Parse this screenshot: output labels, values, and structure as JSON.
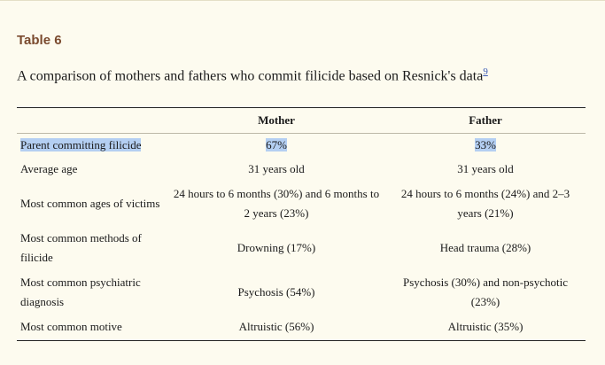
{
  "table_label": "Table 6",
  "caption": {
    "text": "A comparison of mothers and fathers who commit filicide based on Resnick's data",
    "ref": "9"
  },
  "table": {
    "headers": [
      "",
      "Mother",
      "Father"
    ],
    "rows": [
      {
        "label": "Parent committing filicide",
        "mother": "67%",
        "father": "33%"
      },
      {
        "label": "Average age",
        "mother": "31 years old",
        "father": "31 years old"
      },
      {
        "label": "Most common ages of victims",
        "mother": "24 hours to 6 months (30%) and 6 months to 2 years (23%)",
        "father": "24 hours to 6 months (24%) and 2–3 years (21%)"
      },
      {
        "label": "Most common methods of filicide",
        "mother": "Drowning (17%)",
        "father": "Head trauma (28%)"
      },
      {
        "label": "Most common psychiatric diagnosis",
        "mother": "Psychosis (54%)",
        "father": "Psychosis (30%) and non-psychotic (23%)"
      },
      {
        "label": "Most common motive",
        "mother": "Altruistic (56%)",
        "father": "Altruistic (35%)"
      }
    ]
  },
  "colors": {
    "label_brown": "#7a4a2e",
    "highlight": "#b4cff2",
    "link": "#3b5ab5",
    "background": "#fdfbef"
  }
}
